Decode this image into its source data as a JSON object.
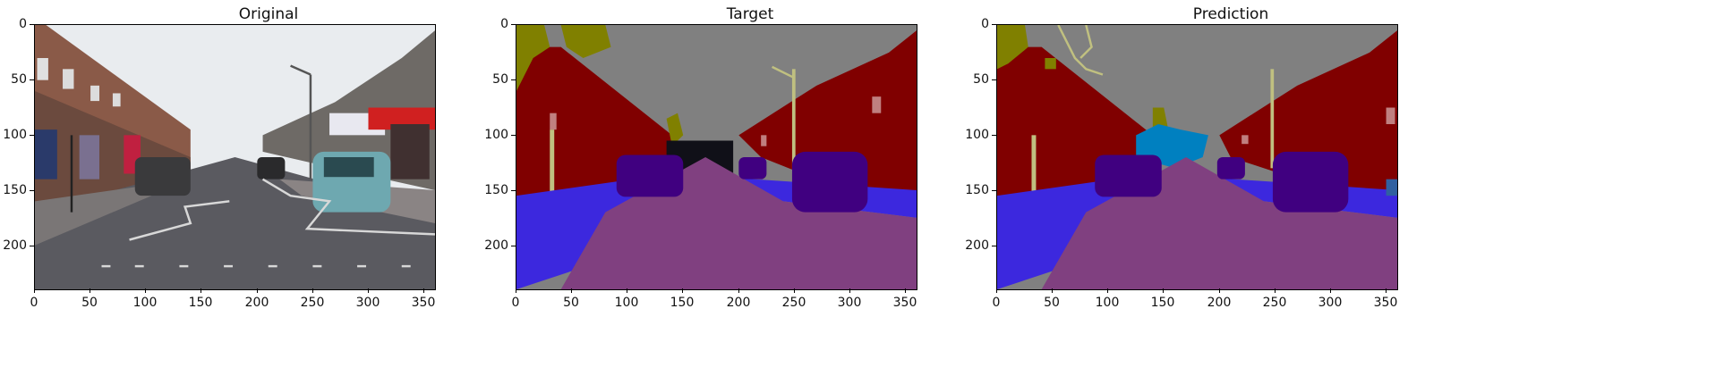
{
  "panels": [
    {
      "title": "Original"
    },
    {
      "title": "Target"
    },
    {
      "title": "Prediction"
    }
  ],
  "axes": {
    "x_ticks": [
      "0",
      "50",
      "100",
      "150",
      "200",
      "250",
      "300",
      "350"
    ],
    "y_ticks": [
      "0",
      "50",
      "100",
      "150",
      "200"
    ],
    "x_range": [
      0,
      360
    ],
    "y_range": [
      0,
      240
    ]
  },
  "palette": {
    "sky": "#808080",
    "building": "#800000",
    "tree": "#808000",
    "pole": "#c0c080",
    "car": "#400080",
    "road": "#804080",
    "pavement": "#3c28de",
    "sign": "#c08080",
    "pedestrian": "#0080c0",
    "void": "#000000"
  }
}
